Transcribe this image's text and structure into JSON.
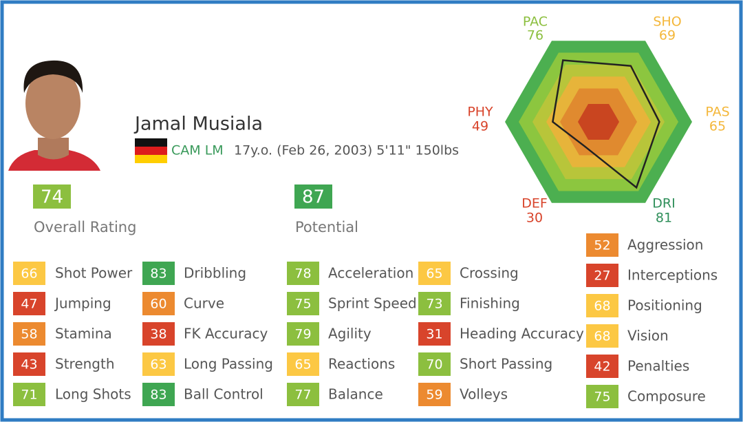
{
  "player": {
    "name": "Jamal Musiala",
    "positions": "CAM LM",
    "details": "17y.o. (Feb 26, 2003) 5'11\" 150lbs"
  },
  "overall": {
    "value": 74,
    "label": "Overall Rating"
  },
  "potential": {
    "value": 87,
    "label": "Potential"
  },
  "radar": [
    {
      "label": "PAC",
      "value": 76
    },
    {
      "label": "SHO",
      "value": 69
    },
    {
      "label": "PAS",
      "value": 65
    },
    {
      "label": "DRI",
      "value": 81
    },
    {
      "label": "DEF",
      "value": 30
    },
    {
      "label": "PHY",
      "value": 49
    }
  ],
  "attributes": [
    [
      {
        "value": 66,
        "label": "Shot Power"
      },
      {
        "value": 47,
        "label": "Jumping"
      },
      {
        "value": 58,
        "label": "Stamina"
      },
      {
        "value": 43,
        "label": "Strength"
      },
      {
        "value": 71,
        "label": "Long Shots"
      }
    ],
    [
      {
        "value": 83,
        "label": "Dribbling"
      },
      {
        "value": 60,
        "label": "Curve"
      },
      {
        "value": 38,
        "label": "FK Accuracy"
      },
      {
        "value": 63,
        "label": "Long Passing"
      },
      {
        "value": 83,
        "label": "Ball Control"
      }
    ],
    [
      {
        "value": 78,
        "label": "Acceleration"
      },
      {
        "value": 75,
        "label": "Sprint Speed"
      },
      {
        "value": 79,
        "label": "Agility"
      },
      {
        "value": 65,
        "label": "Reactions"
      },
      {
        "value": 77,
        "label": "Balance"
      }
    ],
    [
      {
        "value": 65,
        "label": "Crossing"
      },
      {
        "value": 73,
        "label": "Finishing"
      },
      {
        "value": 31,
        "label": "Heading Accuracy"
      },
      {
        "value": 70,
        "label": "Short Passing"
      },
      {
        "value": 59,
        "label": "Volleys"
      }
    ],
    [
      {
        "value": 52,
        "label": "Aggression"
      },
      {
        "value": 27,
        "label": "Interceptions"
      },
      {
        "value": 68,
        "label": "Positioning"
      },
      {
        "value": 68,
        "label": "Vision"
      },
      {
        "value": 42,
        "label": "Penalties"
      },
      {
        "value": 75,
        "label": "Composure"
      }
    ]
  ]
}
